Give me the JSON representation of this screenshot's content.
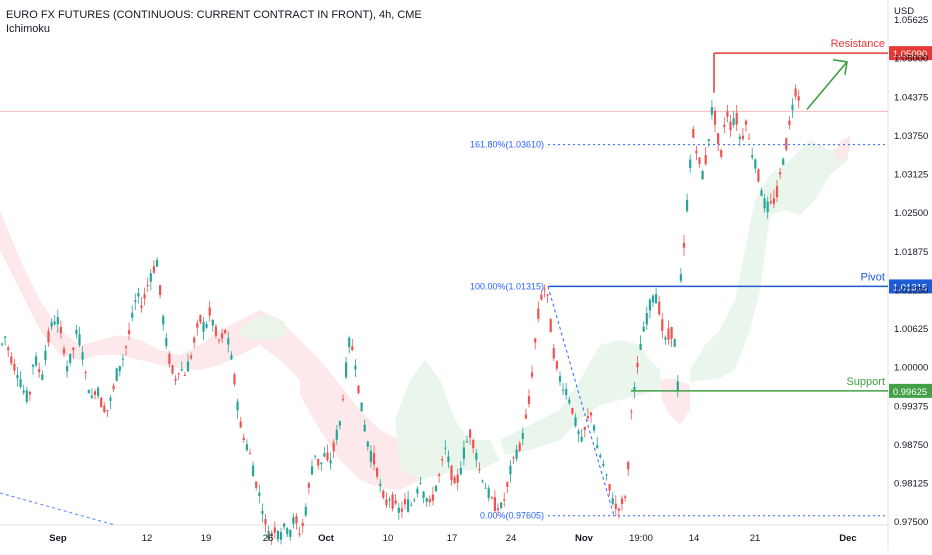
{
  "header": {
    "title": "EURO FX FUTURES (CONTINUOUS: CURRENT CONTRACT IN FRONT), 4h, CME",
    "indicator": "Ichimoku"
  },
  "currency": "USD",
  "colors": {
    "up": "#26a69a",
    "down": "#ef5350",
    "resistance": "#e53935",
    "pivot": "#1e5bd6",
    "support": "#43a047",
    "fib": "#2962ff",
    "cloud_bull": "#e8f5e9",
    "cloud_bear": "#fde7e9"
  },
  "chart_data": {
    "type": "candlestick",
    "ylim": [
      0.9705,
      1.0595
    ],
    "y_ticks": [
      "1.05625",
      "1.05000",
      "1.04375",
      "1.03750",
      "1.03125",
      "1.02500",
      "1.01875",
      "1.01250",
      "1.00625",
      "1.00000",
      "0.99375",
      "0.98750",
      "0.98125",
      "0.97500"
    ],
    "x_ticks": [
      "Sep",
      "12",
      "19",
      "26",
      "Oct",
      "10",
      "17",
      "24",
      "Nov",
      "19:00",
      "14",
      "21",
      "Dec"
    ],
    "levels": [
      {
        "name": "Resistance",
        "value": 1.0509,
        "label": "1.05090"
      },
      {
        "name": "Pivot",
        "value": 1.01315,
        "label": "1.01315"
      },
      {
        "name": "Support",
        "value": 0.99625,
        "label": "0.99625"
      }
    ],
    "fibonacci": [
      {
        "label": "161.80%(1.03610)",
        "value": 1.0361
      },
      {
        "label": "100.00%(1.01315)",
        "value": 1.01315
      },
      {
        "label": "0.00%(0.97605)",
        "value": 0.97605
      }
    ],
    "price_path": [
      [
        0,
        1.003
      ],
      [
        5,
        1.005
      ],
      [
        10,
        1.002
      ],
      [
        15,
        1.0
      ],
      [
        20,
        0.998
      ],
      [
        26,
        0.995
      ],
      [
        30,
        0.996
      ],
      [
        34,
        1.002
      ],
      [
        38,
        1.0
      ],
      [
        42,
        0.9985
      ],
      [
        47,
        1.004
      ],
      [
        52,
        1.007
      ],
      [
        57,
        1.008
      ],
      [
        62,
        1.005
      ],
      [
        67,
        1.0
      ],
      [
        72,
        1.002
      ],
      [
        77,
        1.006
      ],
      [
        82,
        1.003
      ],
      [
        87,
        0.9975
      ],
      [
        92,
        0.995
      ],
      [
        97,
        0.997
      ],
      [
        102,
        0.994
      ],
      [
        107,
        0.993
      ],
      [
        112,
        0.9955
      ],
      [
        117,
        0.999
      ],
      [
        122,
        1.001
      ],
      [
        127,
        1.004
      ],
      [
        132,
        1.008
      ],
      [
        137,
        1.012
      ],
      [
        142,
        1.01
      ],
      [
        147,
        1.013
      ],
      [
        152,
        1.0155
      ],
      [
        157,
        1.017
      ],
      [
        161,
        1.011
      ],
      [
        165,
        1.005
      ],
      [
        170,
        1.001
      ],
      [
        175,
        0.998
      ],
      [
        180,
        1.0
      ],
      [
        185,
        0.999
      ],
      [
        190,
        1.001
      ],
      [
        195,
        1.005
      ],
      [
        200,
        1.008
      ],
      [
        205,
        1.006
      ],
      [
        210,
        1.009
      ],
      [
        215,
        1.006
      ],
      [
        220,
        1.004
      ],
      [
        225,
        1.006
      ],
      [
        230,
        1.003
      ],
      [
        235,
        0.9975
      ],
      [
        240,
        0.991
      ],
      [
        245,
        0.988
      ],
      [
        250,
        0.986
      ],
      [
        255,
        0.982
      ],
      [
        260,
        0.979
      ],
      [
        265,
        0.975
      ],
      [
        270,
        0.9725
      ],
      [
        275,
        0.974
      ],
      [
        280,
        0.9728
      ],
      [
        285,
        0.9745
      ],
      [
        290,
        0.9733
      ],
      [
        295,
        0.976
      ],
      [
        300,
        0.973
      ],
      [
        305,
        0.976
      ],
      [
        310,
        0.982
      ],
      [
        315,
        0.986
      ],
      [
        320,
        0.984
      ],
      [
        325,
        0.986
      ],
      [
        330,
        0.9845
      ],
      [
        335,
        0.988
      ],
      [
        340,
        0.991
      ],
      [
        345,
        0.998
      ],
      [
        350,
        1.005
      ],
      [
        355,
        1.001
      ],
      [
        360,
        0.995
      ],
      [
        365,
        0.99
      ],
      [
        370,
        0.986
      ],
      [
        375,
        0.985
      ],
      [
        380,
        0.981
      ],
      [
        385,
        0.978
      ],
      [
        390,
        0.979
      ],
      [
        395,
        0.978
      ],
      [
        400,
        0.9765
      ],
      [
        405,
        0.978
      ],
      [
        410,
        0.9775
      ],
      [
        415,
        0.979
      ],
      [
        420,
        0.982
      ],
      [
        425,
        0.979
      ],
      [
        430,
        0.978
      ],
      [
        435,
        0.98
      ],
      [
        440,
        0.983
      ],
      [
        445,
        0.987
      ],
      [
        450,
        0.984
      ],
      [
        455,
        0.981
      ],
      [
        460,
        0.983
      ],
      [
        465,
        0.987
      ],
      [
        470,
        0.9895
      ],
      [
        475,
        0.987
      ],
      [
        480,
        0.983
      ],
      [
        485,
        0.981
      ],
      [
        490,
        0.979
      ],
      [
        495,
        0.978
      ],
      [
        500,
        0.977
      ],
      [
        505,
        0.979
      ],
      [
        510,
        0.983
      ],
      [
        515,
        0.986
      ],
      [
        520,
        0.987
      ],
      [
        525,
        0.991
      ],
      [
        530,
        0.9955
      ],
      [
        535,
        1.004
      ],
      [
        540,
        1.011
      ],
      [
        545,
        1.013
      ],
      [
        549,
        1.0105
      ],
      [
        552,
        1.004
      ],
      [
        557,
        1.0
      ],
      [
        562,
        0.997
      ],
      [
        567,
        0.996
      ],
      [
        572,
        0.9935
      ],
      [
        577,
        0.99
      ],
      [
        582,
        0.988
      ],
      [
        587,
        0.9915
      ],
      [
        592,
        0.993
      ],
      [
        597,
        0.987
      ],
      [
        602,
        0.985
      ],
      [
        607,
        0.982
      ],
      [
        612,
        0.979
      ],
      [
        617,
        0.977
      ],
      [
        622,
        0.978
      ],
      [
        627,
        0.98
      ],
      [
        631,
        0.993
      ],
      [
        635,
        0.997
      ],
      [
        640,
        1.003
      ],
      [
        645,
        1.007
      ],
      [
        650,
        1.01
      ],
      [
        654,
        1.012
      ],
      [
        658,
        1.011
      ],
      [
        662,
        1.007
      ],
      [
        666,
        1.004
      ],
      [
        670,
        1.006
      ],
      [
        674,
        1.0055
      ],
      [
        678,
        0.9965
      ],
      [
        681,
        1.015
      ],
      [
        685,
        1.021
      ],
      [
        689,
        1.031
      ],
      [
        693,
        1.038
      ],
      [
        698,
        1.034
      ],
      [
        703,
        1.031
      ],
      [
        708,
        1.036
      ],
      [
        713,
        1.043
      ],
      [
        717,
        1.038
      ],
      [
        721,
        1.034
      ],
      [
        726,
        1.042
      ],
      [
        731,
        1.039
      ],
      [
        736,
        1.041
      ],
      [
        741,
        1.036
      ],
      [
        746,
        1.04
      ],
      [
        751,
        1.035
      ],
      [
        756,
        1.033
      ],
      [
        761,
        1.029
      ],
      [
        766,
        1.0255
      ],
      [
        771,
        1.0265
      ],
      [
        776,
        1.0275
      ],
      [
        781,
        1.032
      ],
      [
        786,
        1.036
      ],
      [
        791,
        1.041
      ],
      [
        795,
        1.045
      ],
      [
        798,
        1.044
      ],
      [
        801,
        1.043
      ]
    ]
  },
  "annotations": {
    "arrow_from": [
      807,
      1.0418
    ],
    "arrow_to": [
      847,
      1.0495
    ]
  }
}
